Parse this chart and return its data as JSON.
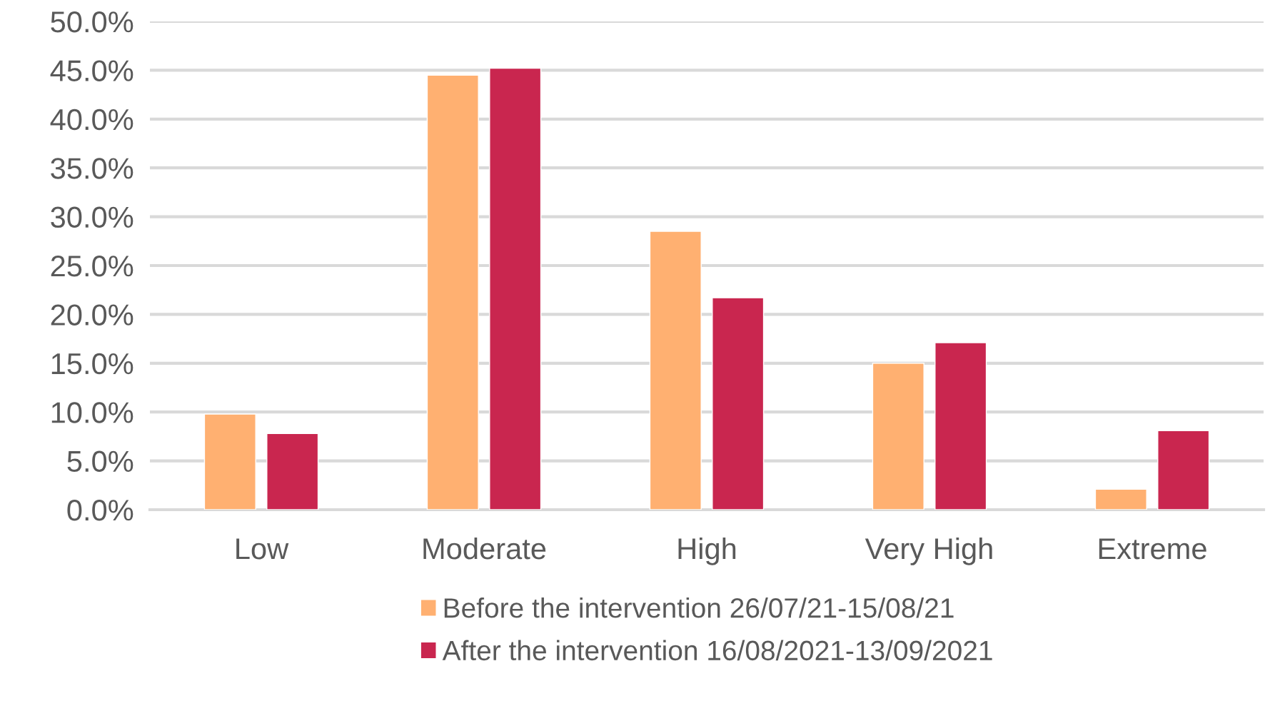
{
  "chart_data": {
    "type": "bar",
    "categories": [
      "Low",
      "Moderate",
      "High",
      "Very High",
      "Extreme"
    ],
    "series": [
      {
        "name": "Before the intervention 26/07/21-15/08/21",
        "color": "#ffb071",
        "values": [
          9.8,
          44.5,
          28.5,
          15.0,
          2.1
        ]
      },
      {
        "name": "After the intervention 16/08/2021-13/09/2021",
        "color": "#c9264f",
        "values": [
          7.8,
          45.2,
          21.7,
          17.1,
          8.1
        ]
      }
    ],
    "ylim": [
      0,
      50
    ],
    "yticks": [
      {
        "value": 0,
        "label": "0.0%"
      },
      {
        "value": 5,
        "label": "5.0%"
      },
      {
        "value": 10,
        "label": "10.0%"
      },
      {
        "value": 15,
        "label": "15.0%"
      },
      {
        "value": 20,
        "label": "20.0%"
      },
      {
        "value": 25,
        "label": "25.0%"
      },
      {
        "value": 30,
        "label": "30.0%"
      },
      {
        "value": 35,
        "label": "35.0%"
      },
      {
        "value": 40,
        "label": "40.0%"
      },
      {
        "value": 45,
        "label": "45.0%"
      },
      {
        "value": 50,
        "label": "50.0%"
      }
    ],
    "grid": "y",
    "legend": "bottom"
  }
}
